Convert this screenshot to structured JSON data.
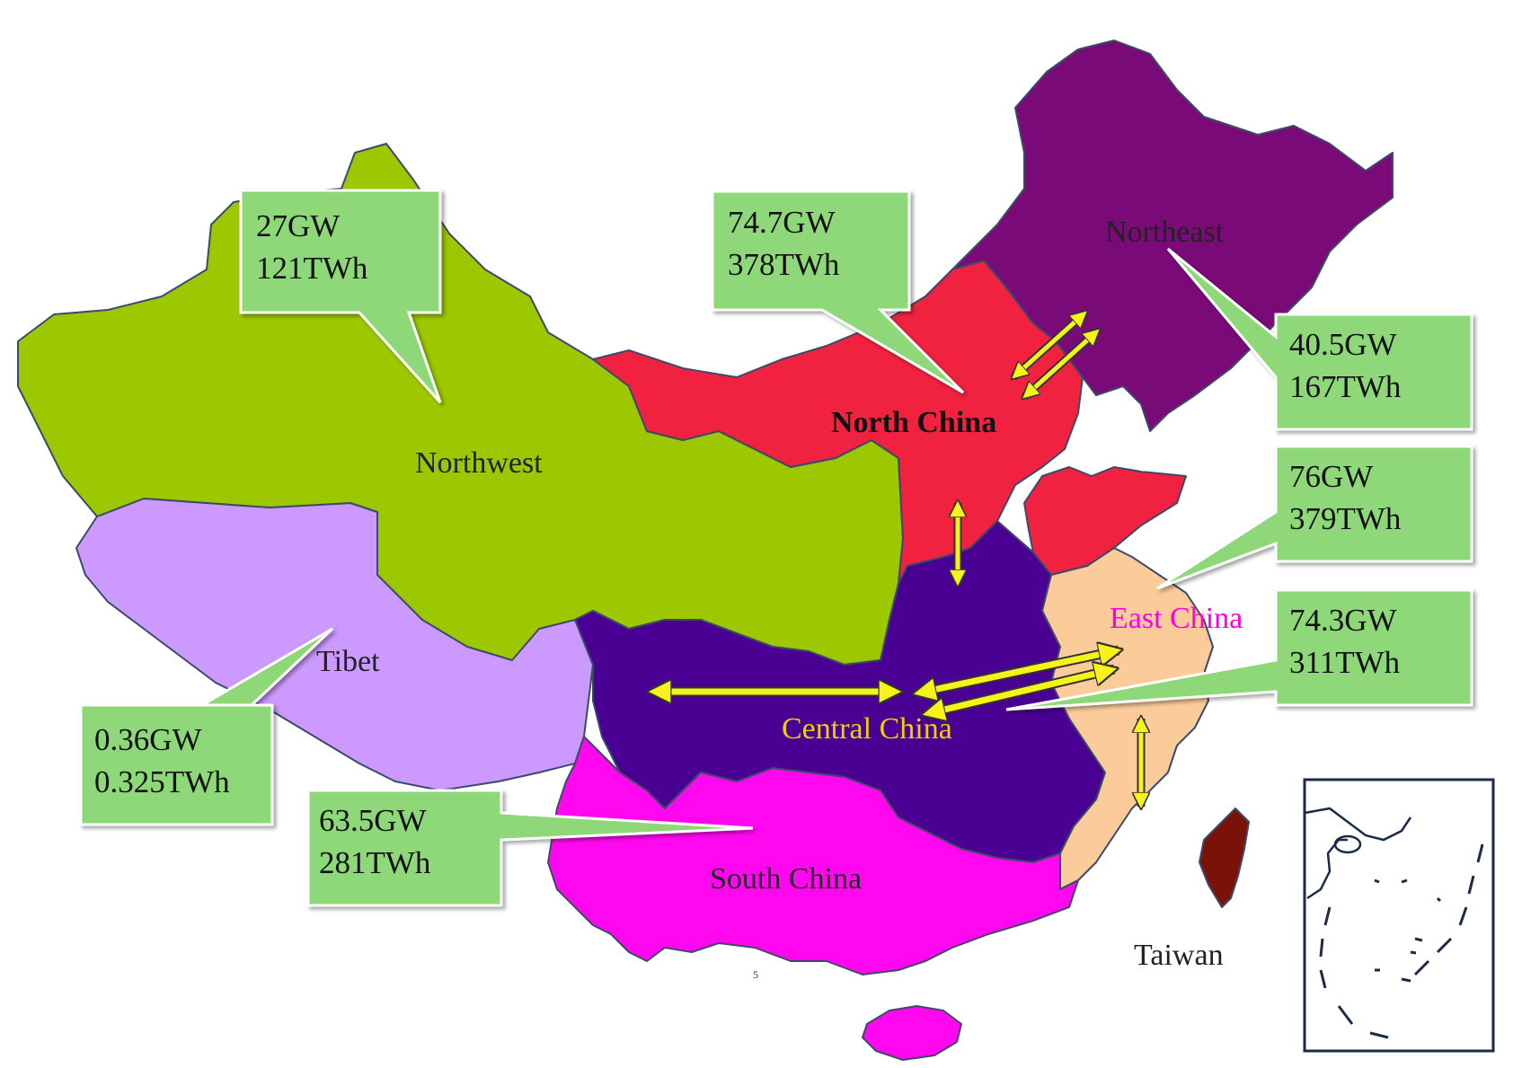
{
  "colors": {
    "northwest": "#9dc700",
    "north_china": "#f0223f",
    "northeast": "#7a0a78",
    "central_china": "#4a0092",
    "east_china": "#fbcb9a",
    "south_china": "#ff08ef",
    "tibet": "#cc99ff",
    "taiwan": "#7b1208",
    "callout": "#8ed879",
    "arrow": "#f7f21a"
  },
  "regions": [
    {
      "name": "Northwest",
      "label": "Northwest",
      "label_color": "#222222"
    },
    {
      "name": "North China",
      "label": "North China",
      "label_color": "#111111",
      "bold": true
    },
    {
      "name": "Northeast",
      "label": "Northeast",
      "label_color": "#222222"
    },
    {
      "name": "Central China",
      "label": "Central China",
      "label_color": "#f0d000"
    },
    {
      "name": "East China",
      "label": "East China",
      "label_color": "#ff00e0"
    },
    {
      "name": "South China",
      "label": "South China",
      "label_color": "#222222"
    },
    {
      "name": "Tibet",
      "label": "Tibet",
      "label_color": "#222222"
    },
    {
      "name": "Taiwan",
      "label": "Taiwan",
      "label_color": "#222222"
    }
  ],
  "callouts": [
    {
      "region": "Northwest",
      "capacity": "27GW",
      "energy": "121TWh"
    },
    {
      "region": "North China",
      "capacity": "74.7GW",
      "energy": "378TWh"
    },
    {
      "region": "Northeast",
      "capacity": "40.5GW",
      "energy": "167TWh"
    },
    {
      "region": "East China",
      "capacity": "76GW",
      "energy": "379TWh"
    },
    {
      "region": "Central China",
      "capacity": "74.3GW",
      "energy": "311TWh"
    },
    {
      "region": "Tibet",
      "capacity": "0.36GW",
      "energy": "0.325TWh"
    },
    {
      "region": "South China",
      "capacity": "63.5GW",
      "energy": "281TWh"
    }
  ],
  "page_note": "5"
}
